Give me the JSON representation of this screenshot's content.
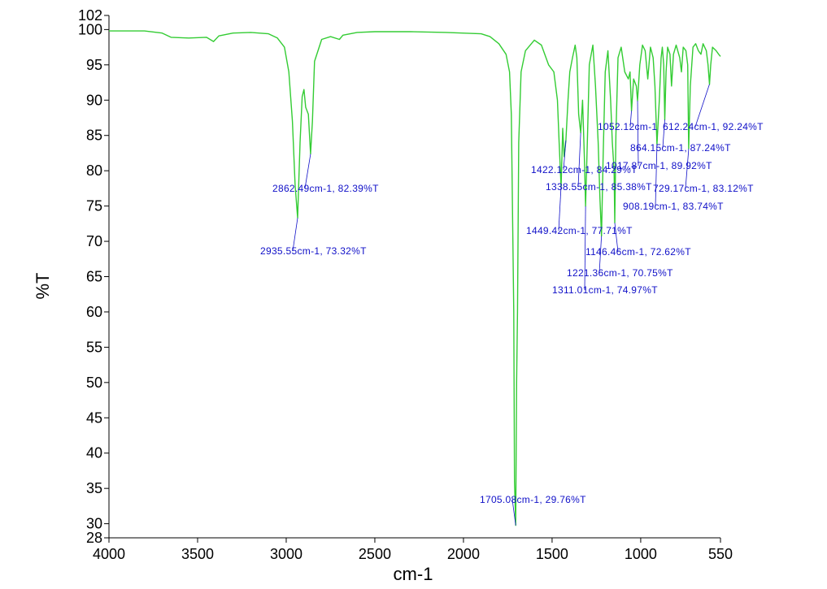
{
  "chart_data": {
    "type": "line",
    "title": "",
    "xlabel": "cm-1",
    "ylabel": "%T",
    "xlim": [
      4000,
      550
    ],
    "ylim": [
      28,
      102
    ],
    "x_reversed": true,
    "grid": false,
    "colors": {
      "line": "#33cc33",
      "annotation": "#1010c8",
      "axis": "#000000"
    },
    "xticks": [
      {
        "value": 4000,
        "label": "4000"
      },
      {
        "value": 3500,
        "label": "3500"
      },
      {
        "value": 3000,
        "label": "3000"
      },
      {
        "value": 2500,
        "label": "2500"
      },
      {
        "value": 2000,
        "label": "2000"
      },
      {
        "value": 1500,
        "label": "1500"
      },
      {
        "value": 1000,
        "label": "1000"
      },
      {
        "value": 550,
        "label": "550"
      }
    ],
    "yticks": [
      {
        "value": 102,
        "label": "102"
      },
      {
        "value": 100,
        "label": "100"
      },
      {
        "value": 95,
        "label": "95"
      },
      {
        "value": 90,
        "label": "90"
      },
      {
        "value": 85,
        "label": "85"
      },
      {
        "value": 80,
        "label": "80"
      },
      {
        "value": 75,
        "label": "75"
      },
      {
        "value": 70,
        "label": "70"
      },
      {
        "value": 65,
        "label": "65"
      },
      {
        "value": 60,
        "label": "60"
      },
      {
        "value": 55,
        "label": "55"
      },
      {
        "value": 50,
        "label": "50"
      },
      {
        "value": 45,
        "label": "45"
      },
      {
        "value": 40,
        "label": "40"
      },
      {
        "value": 35,
        "label": "35"
      },
      {
        "value": 30,
        "label": "30"
      },
      {
        "value": 28,
        "label": "28"
      }
    ],
    "series": [
      {
        "points": [
          [
            4000,
            99.8
          ],
          [
            3800,
            99.8
          ],
          [
            3700,
            99.5
          ],
          [
            3650,
            98.9
          ],
          [
            3550,
            98.8
          ],
          [
            3450,
            98.9
          ],
          [
            3410,
            98.3
          ],
          [
            3380,
            99.1
          ],
          [
            3300,
            99.5
          ],
          [
            3200,
            99.6
          ],
          [
            3100,
            99.4
          ],
          [
            3050,
            98.8
          ],
          [
            3010,
            97.5
          ],
          [
            2985,
            94.0
          ],
          [
            2965,
            87.0
          ],
          [
            2950,
            78.0
          ],
          [
            2935.55,
            73.32
          ],
          [
            2922,
            84.0
          ],
          [
            2910,
            90.5
          ],
          [
            2900,
            91.5
          ],
          [
            2890,
            89.0
          ],
          [
            2875,
            88.0
          ],
          [
            2862.49,
            82.39
          ],
          [
            2852,
            87.0
          ],
          [
            2840,
            95.5
          ],
          [
            2800,
            98.6
          ],
          [
            2750,
            99.0
          ],
          [
            2700,
            98.6
          ],
          [
            2680,
            99.2
          ],
          [
            2600,
            99.6
          ],
          [
            2500,
            99.7
          ],
          [
            2300,
            99.7
          ],
          [
            2100,
            99.6
          ],
          [
            1900,
            99.4
          ],
          [
            1850,
            99.0
          ],
          [
            1800,
            98.0
          ],
          [
            1760,
            96.5
          ],
          [
            1740,
            94.0
          ],
          [
            1730,
            88.0
          ],
          [
            1722,
            72.0
          ],
          [
            1716,
            60.0
          ],
          [
            1712,
            36.0
          ],
          [
            1705.08,
            29.76
          ],
          [
            1700,
            50.0
          ],
          [
            1695,
            60.0
          ],
          [
            1688,
            84.0
          ],
          [
            1675,
            94.0
          ],
          [
            1650,
            97.0
          ],
          [
            1600,
            98.5
          ],
          [
            1560,
            97.8
          ],
          [
            1520,
            95.0
          ],
          [
            1490,
            94.0
          ],
          [
            1470,
            90.0
          ],
          [
            1460,
            84.0
          ],
          [
            1449.42,
            77.71
          ],
          [
            1440,
            86.0
          ],
          [
            1432,
            82.0
          ],
          [
            1422.12,
            84.29
          ],
          [
            1410,
            90.0
          ],
          [
            1400,
            94.0
          ],
          [
            1385,
            96.0
          ],
          [
            1370,
            97.8
          ],
          [
            1360,
            96.0
          ],
          [
            1350,
            88.0
          ],
          [
            1338.55,
            85.38
          ],
          [
            1328,
            90.0
          ],
          [
            1318,
            82.0
          ],
          [
            1311.01,
            74.97
          ],
          [
            1300,
            85.0
          ],
          [
            1290,
            95.0
          ],
          [
            1270,
            97.8
          ],
          [
            1255,
            92.0
          ],
          [
            1240,
            84.0
          ],
          [
            1230,
            76.0
          ],
          [
            1221.36,
            70.75
          ],
          [
            1212,
            82.0
          ],
          [
            1200,
            94.0
          ],
          [
            1185,
            97.0
          ],
          [
            1170,
            90.0
          ],
          [
            1160,
            84.0
          ],
          [
            1150,
            80.0
          ],
          [
            1146.46,
            72.62
          ],
          [
            1140,
            85.0
          ],
          [
            1128,
            96.0
          ],
          [
            1110,
            97.5
          ],
          [
            1090,
            94.0
          ],
          [
            1070,
            93.0
          ],
          [
            1060,
            94.0
          ],
          [
            1052.12,
            88.5
          ],
          [
            1040,
            93.0
          ],
          [
            1025,
            92.0
          ],
          [
            1017.87,
            89.92
          ],
          [
            1005,
            95.0
          ],
          [
            990,
            97.8
          ],
          [
            975,
            97.0
          ],
          [
            960,
            93.0
          ],
          [
            945,
            97.5
          ],
          [
            930,
            96.0
          ],
          [
            920,
            92.0
          ],
          [
            908.19,
            83.74
          ],
          [
            895,
            90.0
          ],
          [
            885,
            96.0
          ],
          [
            878,
            97.5
          ],
          [
            870,
            95.0
          ],
          [
            864.15,
            87.24
          ],
          [
            857,
            94.0
          ],
          [
            848,
            97.5
          ],
          [
            835,
            96.5
          ],
          [
            826,
            92.0
          ],
          [
            815,
            96.5
          ],
          [
            800,
            97.8
          ],
          [
            780,
            96.0
          ],
          [
            770,
            94.0
          ],
          [
            760,
            97.5
          ],
          [
            745,
            97.0
          ],
          [
            735,
            95.0
          ],
          [
            729.17,
            83.12
          ],
          [
            720,
            92.0
          ],
          [
            705,
            97.5
          ],
          [
            690,
            98.0
          ],
          [
            675,
            97.0
          ],
          [
            660,
            96.5
          ],
          [
            648,
            98.0
          ],
          [
            630,
            97.0
          ],
          [
            620,
            95.0
          ],
          [
            612,
            92.24
          ],
          [
            605,
            95.0
          ],
          [
            595,
            97.5
          ],
          [
            575,
            97.0
          ],
          [
            560,
            96.5
          ],
          [
            550,
            96.2
          ]
        ]
      }
    ],
    "annotations": [
      {
        "label": "2862.49cm-1, 82.39%T",
        "x": 2862.49,
        "y": 82.39
      },
      {
        "label": "2935.55cm-1, 73.32%T",
        "x": 2935.55,
        "y": 73.32
      },
      {
        "label": "1705.08cm-1, 29.76%T",
        "x": 1705.08,
        "y": 29.76
      },
      {
        "label": "1449.42cm-1, 77.71%T",
        "x": 1449.42,
        "y": 77.71
      },
      {
        "label": "1422.12cm-1, 84.29%T",
        "x": 1422.12,
        "y": 84.29
      },
      {
        "label": "1338.55cm-1, 85.38%T",
        "x": 1338.55,
        "y": 85.38
      },
      {
        "label": "1311.01cm-1, 74.97%T",
        "x": 1311.01,
        "y": 74.97
      },
      {
        "label": "1221.36cm-1, 70.75%T",
        "x": 1221.36,
        "y": 70.75
      },
      {
        "label": "1146.46cm-1, 72.62%T",
        "x": 1146.46,
        "y": 72.62
      },
      {
        "label": "1052.12cm-1",
        "x": 1052.12,
        "y": 88.5
      },
      {
        "label": "1017.87cm-1, 89.92%T",
        "x": 1017.87,
        "y": 89.92
      },
      {
        "label": "908.19cm-1, 83.74%T",
        "x": 908.19,
        "y": 83.74
      },
      {
        "label": "864.15cm-1, 87.24%T",
        "x": 864.15,
        "y": 87.24
      },
      {
        "label": "729.17cm-1, 83.12%T",
        "x": 729.17,
        "y": 83.12
      },
      {
        "label": "612.24cm-1, 92.24%T",
        "x": 612.24,
        "y": 92.24
      }
    ]
  }
}
